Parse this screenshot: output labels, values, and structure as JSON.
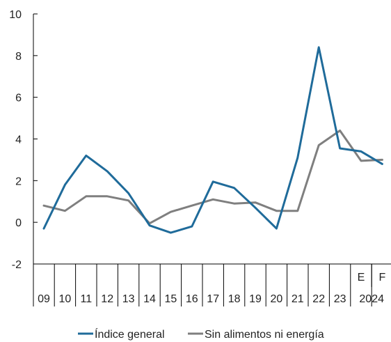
{
  "chart_data": {
    "type": "line",
    "categories": [
      "09",
      "10",
      "11",
      "12",
      "13",
      "14",
      "15",
      "16",
      "17",
      "18",
      "19",
      "20",
      "21",
      "22",
      "23",
      "E",
      "F"
    ],
    "year_label": "2024",
    "series": [
      {
        "name": "Índice general",
        "color": "#1f6b9a",
        "values": [
          -0.3,
          1.8,
          3.2,
          2.45,
          1.4,
          -0.15,
          -0.5,
          -0.2,
          1.95,
          1.65,
          0.7,
          -0.3,
          3.1,
          8.4,
          3.55,
          3.4,
          2.8
        ]
      },
      {
        "name": "Sin alimentos ni energía",
        "color": "#7f7f7f",
        "values": [
          0.8,
          0.55,
          1.25,
          1.25,
          1.05,
          -0.05,
          0.5,
          0.8,
          1.1,
          0.9,
          0.95,
          0.55,
          0.55,
          3.7,
          4.4,
          2.95,
          3.0
        ]
      }
    ],
    "ylim": [
      -2,
      10
    ],
    "yticks": [
      -2,
      0,
      2,
      4,
      6,
      8,
      10
    ],
    "grid": false,
    "legend_position": "bottom"
  }
}
